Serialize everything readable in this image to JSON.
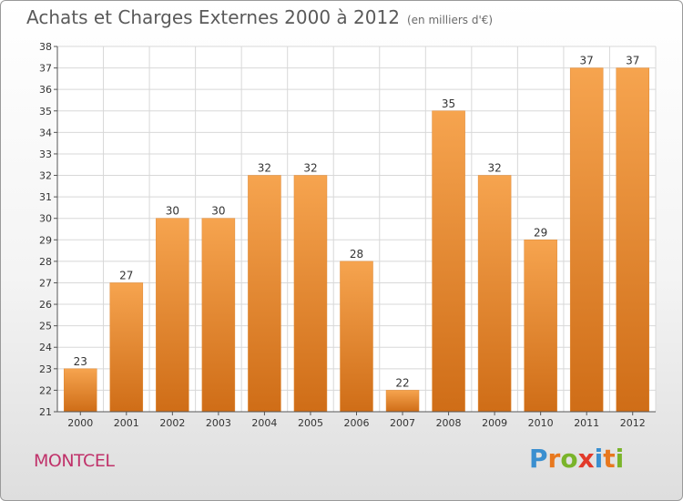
{
  "header": {
    "title": "Achats et Charges Externes 2000 à 2012",
    "unit": "(en milliers d'€)"
  },
  "footer": {
    "commune": "MONTCEL",
    "brand_letters": [
      "P",
      "r",
      "o",
      "x",
      "i",
      "t",
      "i"
    ],
    "brand_colors": [
      "#3a8fd0",
      "#e8781e",
      "#7ab42a",
      "#e23a2a",
      "#3a8fd0",
      "#e8781e",
      "#7ab42a"
    ]
  },
  "colors": {
    "bar_top": "#f6a44f",
    "bar_bottom": "#cf6d17",
    "grid": "#d8d8d8",
    "axis": "#555555",
    "text": "#333333"
  },
  "chart_data": {
    "type": "bar",
    "categories": [
      "2000",
      "2001",
      "2002",
      "2003",
      "2004",
      "2005",
      "2006",
      "2007",
      "2008",
      "2009",
      "2010",
      "2011",
      "2012"
    ],
    "values": [
      23,
      27,
      30,
      30,
      32,
      32,
      28,
      22,
      35,
      32,
      29,
      37,
      37
    ],
    "ylim": [
      21,
      38
    ],
    "yticks": [
      21,
      22,
      23,
      24,
      25,
      26,
      27,
      28,
      29,
      30,
      31,
      32,
      33,
      34,
      35,
      36,
      37,
      38
    ],
    "grid": true,
    "data_labels": true
  }
}
